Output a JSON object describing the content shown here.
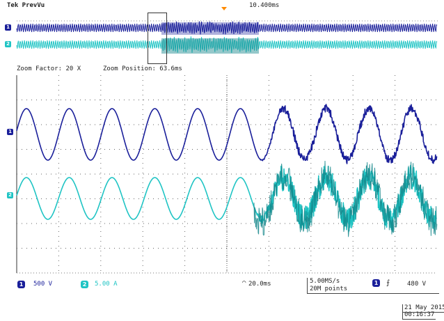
{
  "header": {
    "title": "Tek PrevVu",
    "time_position": "10.400ms"
  },
  "zoom": {
    "factor_text": "Zoom Factor: 20 X",
    "position_text": "Zoom Position: 63.6ms"
  },
  "channels": [
    {
      "id": "1",
      "scale": "500 V",
      "color": "#1a1f9a"
    },
    {
      "id": "2",
      "scale": "5.00 A",
      "color": "#1fc4c4"
    }
  ],
  "timebase": {
    "scale": "20.0ms"
  },
  "acquisition": {
    "sample_rate": "5.00MS/s",
    "record_length": "20M points"
  },
  "trigger": {
    "source": "1",
    "slope": "rising",
    "level": "480 V"
  },
  "datetime": {
    "date": "21 May 2015",
    "time": "00:16:37"
  },
  "colors": {
    "ch1": "#1a1f9a",
    "ch2": "#1fc4c4",
    "ch2_dark": "#13868a",
    "trigger_marker": "#ff8a00"
  }
}
